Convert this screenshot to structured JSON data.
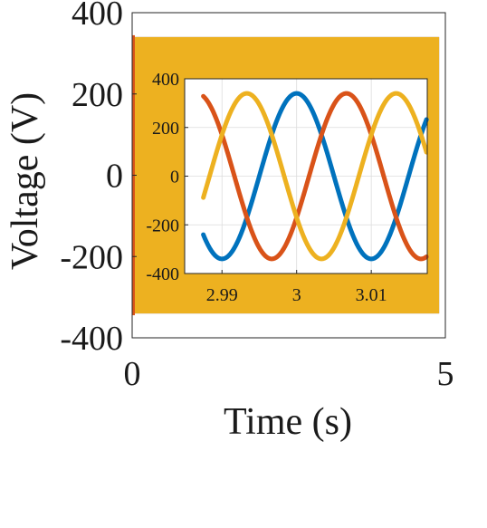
{
  "chart_data": [
    {
      "type": "line",
      "title": "",
      "xlabel": "Time (s)",
      "ylabel": "Voltage (V)",
      "xlim": [
        0,
        5
      ],
      "ylim": [
        -400,
        400
      ],
      "xticks": [
        "0",
        "5"
      ],
      "yticks": [
        "-400",
        "-200",
        "0",
        "200",
        "400"
      ],
      "grid": false,
      "signal": {
        "amplitude": 340,
        "frequency_hz": 50,
        "phases": 3,
        "phase_shift_deg": 120,
        "envelope_start": 0,
        "envelope_end": 4.9
      },
      "series": [
        {
          "color": "#0072BD"
        },
        {
          "color": "#D95319"
        },
        {
          "color": "#EDB120"
        }
      ]
    },
    {
      "type": "line",
      "title": "",
      "xlabel": "",
      "ylabel": "",
      "xlim": [
        2.985,
        3.0175
      ],
      "ylim": [
        -400,
        400
      ],
      "xticks": [
        "2.99",
        "3",
        "3.01"
      ],
      "yticks": [
        "-400",
        "-200",
        "0",
        "200",
        "400"
      ],
      "grid": true,
      "signal": {
        "amplitude": 340,
        "frequency_hz": 50,
        "plot_start": 2.9875,
        "plot_end": 3.0174
      },
      "series": [
        {
          "color": "#0072BD",
          "phase_deg": 90
        },
        {
          "color": "#D95319",
          "phase_deg": -30
        },
        {
          "color": "#EDB120",
          "phase_deg": 210
        }
      ]
    }
  ]
}
